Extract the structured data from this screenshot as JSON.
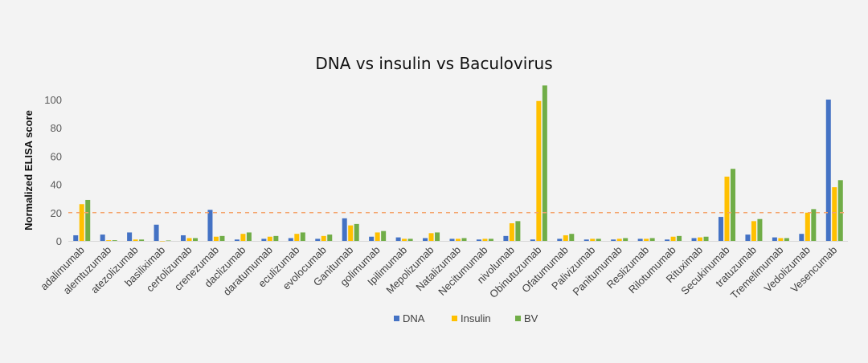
{
  "chart_data": {
    "type": "bar",
    "title": "DNA vs insulin vs Baculovirus",
    "xlabel": "",
    "ylabel": "Normalized ELISA score",
    "ylim": [
      0,
      110
    ],
    "yticks": [
      0,
      20,
      40,
      60,
      80,
      100
    ],
    "ytick_labels": [
      "0",
      "20",
      "40",
      "60",
      "80",
      "100"
    ],
    "grid": false,
    "legend_position": "bottom",
    "threshold": {
      "value": 20,
      "color": "#F4A46B",
      "style": "dashed"
    },
    "categories": [
      "adalimumab",
      "alemtuzumab",
      "atezolizumab",
      "basiliximab",
      "certolizumab",
      "crenezumab",
      "daclizumab",
      "daratumumab",
      "eculizumab",
      "evolocumab",
      "Ganitumab",
      "golimumab",
      "Ipilimumab",
      "Mepolizumab",
      "Natalizumab",
      "Necitumumab",
      "nivolumab",
      "Obinutuzumab",
      "Ofatumumab",
      "Palivizumab",
      "Panitumumab",
      "Reslizumab",
      "Rilotumumab",
      "Rituximab",
      "Secukinumab",
      "tratuzumab",
      "Tremelimumab",
      "Vedolizumab",
      "Vesencumab"
    ],
    "series": [
      {
        "name": "DNA",
        "color": "#4472C4",
        "values": [
          4,
          4.5,
          6,
          11.5,
          4,
          22,
          1,
          1.5,
          2,
          1.5,
          16,
          3,
          2.5,
          2,
          1.5,
          1,
          3.5,
          1,
          1.5,
          1,
          1,
          1.5,
          1,
          2,
          17,
          4.5,
          2.5,
          5,
          100
        ]
      },
      {
        "name": "Insulin",
        "color": "#FFC000",
        "values": [
          26,
          0.5,
          1,
          0,
          2,
          3,
          5,
          3,
          5,
          3.5,
          11,
          6,
          1.5,
          5.5,
          1.5,
          1.5,
          12.5,
          99,
          4,
          1.5,
          1.5,
          1.5,
          3,
          2.5,
          45.5,
          14,
          2,
          20,
          38
        ]
      },
      {
        "name": "BV",
        "color": "#70AD47",
        "values": [
          29,
          0.5,
          1,
          0.3,
          2,
          3.5,
          6,
          3.5,
          6,
          4.5,
          12,
          7,
          1.5,
          6,
          2,
          1.5,
          14,
          110,
          5,
          1.5,
          2,
          2,
          3.5,
          3,
          51,
          15.5,
          2,
          22.5,
          43
        ]
      }
    ]
  }
}
